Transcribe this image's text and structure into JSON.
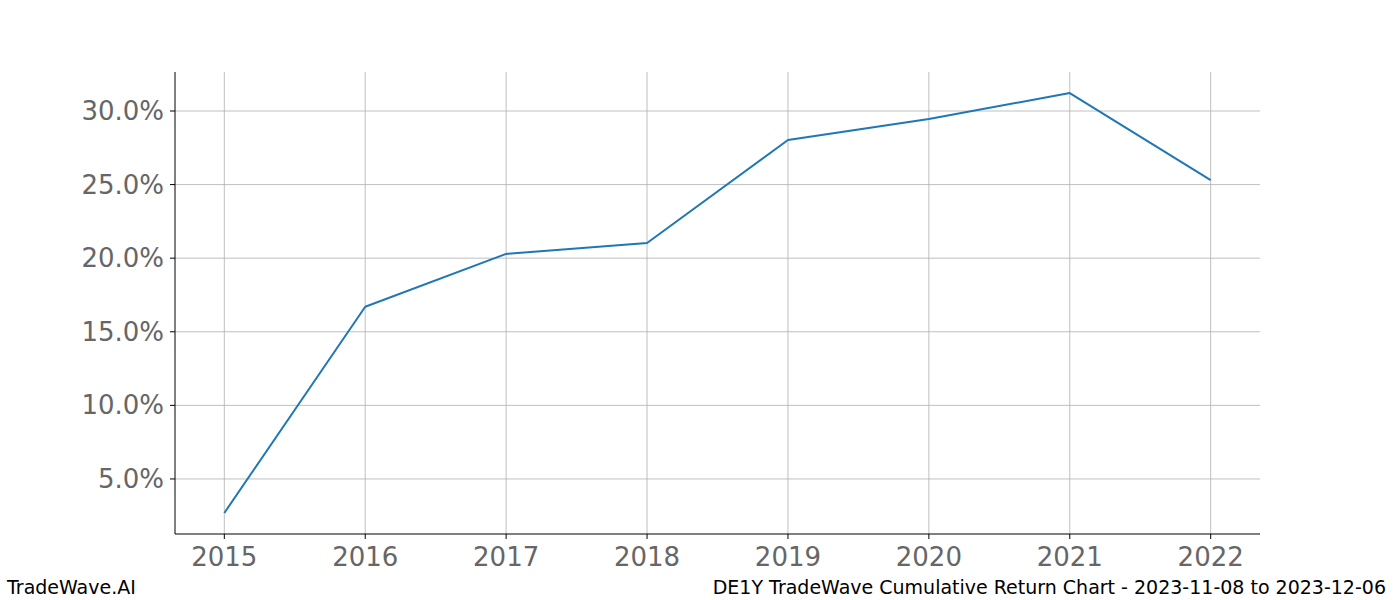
{
  "chart_data": {
    "type": "line",
    "title": "DE1Y TradeWave Cumulative Return Chart - 2023-11-08 to 2023-12-06",
    "annotations": [
      "TradeWave.AI"
    ],
    "x": [
      2015,
      2016,
      2017,
      2018,
      2019,
      2020,
      2021,
      2022
    ],
    "series": [
      {
        "name": "DE1Y",
        "color": "#1f77b4",
        "values": [
          2.69,
          16.7,
          20.29,
          21.03,
          28.03,
          29.46,
          31.22,
          25.31
        ]
      }
    ],
    "xlim": [
      2014.65,
      2022.35
    ],
    "xticks": [
      2015,
      2016,
      2017,
      2018,
      2019,
      2020,
      2021,
      2022
    ],
    "ylim": [
      1.26,
      32.65
    ],
    "yticks": [
      {
        "value": 5,
        "label": "5.0%"
      },
      {
        "value": 10,
        "label": "10.0%"
      },
      {
        "value": 15,
        "label": "15.0%"
      },
      {
        "value": 20,
        "label": "20.0%"
      },
      {
        "value": 25,
        "label": "25.0%"
      },
      {
        "value": 30,
        "label": "30.0%"
      }
    ],
    "grid": true
  }
}
